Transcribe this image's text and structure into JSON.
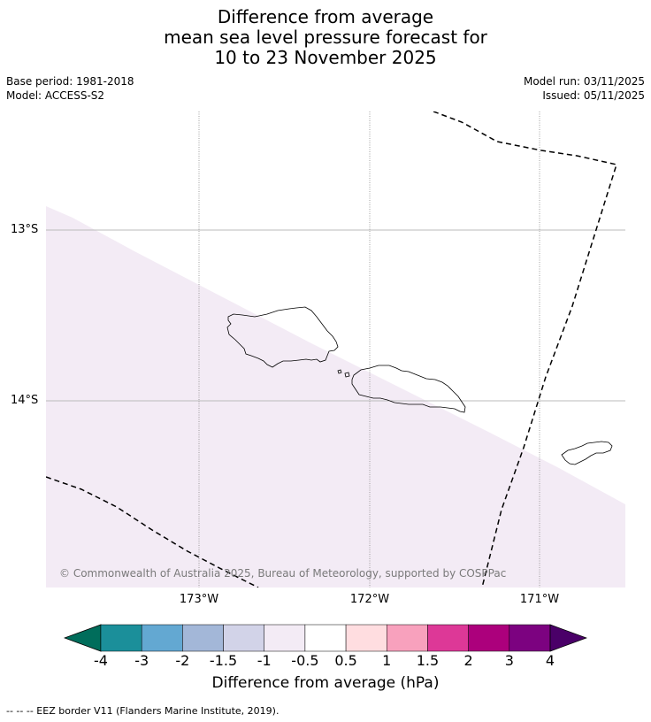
{
  "title": {
    "line1": "Difference from average",
    "line2": "mean sea level pressure forecast for",
    "line3": "10 to 23 November 2025"
  },
  "meta": {
    "base_period": "Base period: 1981-2018",
    "model": "Model: ACCESS-S2",
    "model_run": "Model run: 03/11/2025",
    "issued": "Issued: 05/11/2025"
  },
  "map": {
    "lat_labels": [
      "13°S",
      "14°S"
    ],
    "lon_labels": [
      "173°W",
      "172°W",
      "171°W"
    ],
    "copyright": "© Commonwealth of Australia 2025, Bureau of Meteorology, supported by COSPPac",
    "shading_color": "#f3ebf5",
    "eez_color": "#000000"
  },
  "colorbar": {
    "colors": [
      "#006d5b",
      "#1b8f9a",
      "#63a8d2",
      "#a3b7d8",
      "#d2d3e8",
      "#f3ebf5",
      "#ffffff",
      "#ffdde0",
      "#f8a1bd",
      "#dd3897",
      "#ac007c",
      "#7c0280",
      "#4a0068"
    ],
    "ticks": [
      "-4",
      "-3",
      "-2",
      "-1.5",
      "-1",
      "-0.5",
      "0.5",
      "1",
      "1.5",
      "2",
      "3",
      "4"
    ],
    "label": "Difference from average (hPa)"
  },
  "footnote": "--  --  -- EEZ border V11 (Flanders Marine Institute, 2019)."
}
